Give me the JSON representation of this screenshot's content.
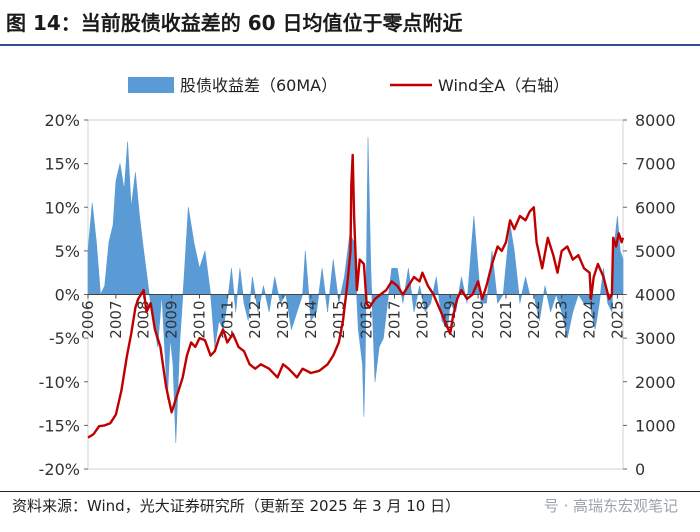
{
  "title": "图 14：当前股债收益差的 60 日均值位于零点附近",
  "source": "资料来源：Wind，光大证券研究所（更新至 2025 年 3 月 10 日）",
  "watermark": "号 · 高瑞东宏观笔记",
  "colors": {
    "bar": "#5b9bd5",
    "line": "#c00000",
    "title_rule": "#2b4e8c"
  },
  "chart_data": {
    "type": "area+line",
    "legend_position": "top",
    "legend": [
      "股债收益差（60MA）",
      "Wind全A（右轴）"
    ],
    "x_ticks": [
      "2006",
      "2007",
      "2008",
      "2009",
      "2010",
      "2011",
      "2012",
      "2013",
      "2014",
      "2015",
      "2016",
      "2017",
      "2018",
      "2019",
      "2020",
      "2021",
      "2022",
      "2023",
      "2024",
      "2025"
    ],
    "y_left_ticks": [
      "20%",
      "15%",
      "10%",
      "5%",
      "0%",
      "-5%",
      "-10%",
      "-15%",
      "-20%"
    ],
    "y_right_ticks": [
      "8000",
      "7000",
      "6000",
      "5000",
      "4000",
      "3000",
      "2000",
      "1000",
      "0"
    ],
    "y_left_range": [
      -20,
      20
    ],
    "y_right_range": [
      0,
      8000
    ],
    "x_range": [
      2006.0,
      2025.2
    ],
    "series": [
      {
        "name": "股债收益差（60MA）",
        "axis": "left",
        "type": "area",
        "points": [
          [
            2006.0,
            5
          ],
          [
            2006.15,
            10.5
          ],
          [
            2006.3,
            6
          ],
          [
            2006.45,
            0
          ],
          [
            2006.6,
            1
          ],
          [
            2006.75,
            6
          ],
          [
            2006.9,
            8
          ],
          [
            2007.0,
            13
          ],
          [
            2007.15,
            15
          ],
          [
            2007.3,
            12
          ],
          [
            2007.42,
            17.5
          ],
          [
            2007.55,
            10
          ],
          [
            2007.7,
            14
          ],
          [
            2007.85,
            9
          ],
          [
            2008.0,
            5
          ],
          [
            2008.2,
            0
          ],
          [
            2008.35,
            -3
          ],
          [
            2008.5,
            -6
          ],
          [
            2008.65,
            0
          ],
          [
            2008.85,
            -12
          ],
          [
            2008.95,
            -5
          ],
          [
            2009.05,
            -8
          ],
          [
            2009.15,
            -17
          ],
          [
            2009.3,
            -5
          ],
          [
            2009.45,
            2
          ],
          [
            2009.6,
            10
          ],
          [
            2009.8,
            6
          ],
          [
            2010.0,
            3
          ],
          [
            2010.2,
            5
          ],
          [
            2010.4,
            0
          ],
          [
            2010.55,
            -6
          ],
          [
            2010.7,
            -3
          ],
          [
            2010.85,
            -4
          ],
          [
            2011.0,
            -1
          ],
          [
            2011.15,
            3
          ],
          [
            2011.3,
            -2
          ],
          [
            2011.45,
            3
          ],
          [
            2011.6,
            -1
          ],
          [
            2011.75,
            -3
          ],
          [
            2011.9,
            2
          ],
          [
            2012.1,
            -2
          ],
          [
            2012.3,
            1
          ],
          [
            2012.5,
            -2
          ],
          [
            2012.7,
            2
          ],
          [
            2012.9,
            -1
          ],
          [
            2013.1,
            0
          ],
          [
            2013.3,
            -4
          ],
          [
            2013.5,
            -2
          ],
          [
            2013.7,
            0
          ],
          [
            2013.8,
            5
          ],
          [
            2014.0,
            -3
          ],
          [
            2014.2,
            -2
          ],
          [
            2014.4,
            3
          ],
          [
            2014.6,
            -2
          ],
          [
            2014.8,
            4
          ],
          [
            2015.0,
            -1
          ],
          [
            2015.2,
            2
          ],
          [
            2015.4,
            7
          ],
          [
            2015.55,
            6
          ],
          [
            2015.7,
            -4
          ],
          [
            2015.85,
            -8
          ],
          [
            2015.9,
            -14
          ],
          [
            2015.95,
            -7
          ],
          [
            2016.05,
            18
          ],
          [
            2016.15,
            3
          ],
          [
            2016.3,
            -10
          ],
          [
            2016.45,
            -6
          ],
          [
            2016.6,
            -5
          ],
          [
            2016.75,
            -1
          ],
          [
            2016.9,
            3
          ],
          [
            2017.1,
            3
          ],
          [
            2017.3,
            -1
          ],
          [
            2017.5,
            3
          ],
          [
            2017.7,
            -2
          ],
          [
            2017.9,
            1
          ],
          [
            2018.1,
            -2
          ],
          [
            2018.3,
            -1
          ],
          [
            2018.5,
            2
          ],
          [
            2018.7,
            -3
          ],
          [
            2018.9,
            -4
          ],
          [
            2019.0,
            -1
          ],
          [
            2019.2,
            -2
          ],
          [
            2019.4,
            2
          ],
          [
            2019.6,
            -1
          ],
          [
            2019.75,
            5
          ],
          [
            2019.85,
            9
          ],
          [
            2019.95,
            5
          ],
          [
            2020.1,
            -1
          ],
          [
            2020.3,
            -1
          ],
          [
            2020.5,
            5
          ],
          [
            2020.7,
            -1
          ],
          [
            2020.9,
            0
          ],
          [
            2021.05,
            5
          ],
          [
            2021.15,
            8
          ],
          [
            2021.3,
            5
          ],
          [
            2021.5,
            -1
          ],
          [
            2021.7,
            2
          ],
          [
            2021.85,
            0
          ],
          [
            2022.0,
            0
          ],
          [
            2022.2,
            -3
          ],
          [
            2022.4,
            1
          ],
          [
            2022.6,
            -2
          ],
          [
            2022.8,
            0
          ],
          [
            2023.0,
            -2
          ],
          [
            2023.2,
            -5
          ],
          [
            2023.4,
            -2
          ],
          [
            2023.6,
            0
          ],
          [
            2023.8,
            -1
          ],
          [
            2024.0,
            -1
          ],
          [
            2024.2,
            -4
          ],
          [
            2024.35,
            -1
          ],
          [
            2024.5,
            3
          ],
          [
            2024.65,
            -1
          ],
          [
            2024.8,
            -2
          ],
          [
            2024.9,
            6
          ],
          [
            2025.0,
            9
          ],
          [
            2025.1,
            5
          ],
          [
            2025.2,
            4
          ]
        ]
      },
      {
        "name": "Wind全A（右轴）",
        "axis": "right",
        "type": "line",
        "points": [
          [
            2006.0,
            720
          ],
          [
            2006.2,
            800
          ],
          [
            2006.4,
            980
          ],
          [
            2006.6,
            1000
          ],
          [
            2006.8,
            1050
          ],
          [
            2007.0,
            1250
          ],
          [
            2007.2,
            1800
          ],
          [
            2007.4,
            2600
          ],
          [
            2007.55,
            3100
          ],
          [
            2007.7,
            3700
          ],
          [
            2007.8,
            3900
          ],
          [
            2008.0,
            4100
          ],
          [
            2008.1,
            3600
          ],
          [
            2008.25,
            3800
          ],
          [
            2008.4,
            3200
          ],
          [
            2008.6,
            2800
          ],
          [
            2008.8,
            1900
          ],
          [
            2009.0,
            1300
          ],
          [
            2009.1,
            1500
          ],
          [
            2009.25,
            1800
          ],
          [
            2009.4,
            2100
          ],
          [
            2009.55,
            2600
          ],
          [
            2009.7,
            2900
          ],
          [
            2009.85,
            2800
          ],
          [
            2010.0,
            3000
          ],
          [
            2010.2,
            2950
          ],
          [
            2010.4,
            2600
          ],
          [
            2010.55,
            2700
          ],
          [
            2010.7,
            3000
          ],
          [
            2010.85,
            3200
          ],
          [
            2011.0,
            2900
          ],
          [
            2011.2,
            3100
          ],
          [
            2011.4,
            2800
          ],
          [
            2011.6,
            2700
          ],
          [
            2011.8,
            2400
          ],
          [
            2012.0,
            2300
          ],
          [
            2012.2,
            2400
          ],
          [
            2012.5,
            2300
          ],
          [
            2012.8,
            2100
          ],
          [
            2013.0,
            2400
          ],
          [
            2013.2,
            2300
          ],
          [
            2013.5,
            2100
          ],
          [
            2013.7,
            2300
          ],
          [
            2014.0,
            2200
          ],
          [
            2014.3,
            2250
          ],
          [
            2014.6,
            2400
          ],
          [
            2014.8,
            2600
          ],
          [
            2015.0,
            2900
          ],
          [
            2015.15,
            3400
          ],
          [
            2015.3,
            4200
          ],
          [
            2015.42,
            5000
          ],
          [
            2015.45,
            6500
          ],
          [
            2015.5,
            7200
          ],
          [
            2015.55,
            5800
          ],
          [
            2015.65,
            4100
          ],
          [
            2015.75,
            4800
          ],
          [
            2015.9,
            4700
          ],
          [
            2016.0,
            3800
          ],
          [
            2016.1,
            3700
          ],
          [
            2016.3,
            3900
          ],
          [
            2016.5,
            4000
          ],
          [
            2016.7,
            4100
          ],
          [
            2016.9,
            4300
          ],
          [
            2017.1,
            4200
          ],
          [
            2017.3,
            4000
          ],
          [
            2017.5,
            4200
          ],
          [
            2017.7,
            4400
          ],
          [
            2017.9,
            4300
          ],
          [
            2018.0,
            4500
          ],
          [
            2018.2,
            4200
          ],
          [
            2018.4,
            4000
          ],
          [
            2018.6,
            3700
          ],
          [
            2018.8,
            3400
          ],
          [
            2019.0,
            3100
          ],
          [
            2019.1,
            3500
          ],
          [
            2019.25,
            3900
          ],
          [
            2019.4,
            4100
          ],
          [
            2019.6,
            3900
          ],
          [
            2019.8,
            4000
          ],
          [
            2020.0,
            4300
          ],
          [
            2020.15,
            3900
          ],
          [
            2020.3,
            4200
          ],
          [
            2020.5,
            4700
          ],
          [
            2020.7,
            5100
          ],
          [
            2020.85,
            5000
          ],
          [
            2021.0,
            5200
          ],
          [
            2021.15,
            5700
          ],
          [
            2021.3,
            5500
          ],
          [
            2021.5,
            5800
          ],
          [
            2021.7,
            5700
          ],
          [
            2021.85,
            5900
          ],
          [
            2022.0,
            6000
          ],
          [
            2022.1,
            5200
          ],
          [
            2022.3,
            4600
          ],
          [
            2022.5,
            5300
          ],
          [
            2022.7,
            4900
          ],
          [
            2022.85,
            4500
          ],
          [
            2023.0,
            5000
          ],
          [
            2023.2,
            5100
          ],
          [
            2023.4,
            4800
          ],
          [
            2023.6,
            4900
          ],
          [
            2023.8,
            4600
          ],
          [
            2024.0,
            4500
          ],
          [
            2024.05,
            3900
          ],
          [
            2024.15,
            4400
          ],
          [
            2024.3,
            4700
          ],
          [
            2024.5,
            4400
          ],
          [
            2024.7,
            3900
          ],
          [
            2024.8,
            4000
          ],
          [
            2024.85,
            5300
          ],
          [
            2024.95,
            5100
          ],
          [
            2025.05,
            5400
          ],
          [
            2025.15,
            5200
          ],
          [
            2025.2,
            5300
          ]
        ]
      }
    ]
  }
}
